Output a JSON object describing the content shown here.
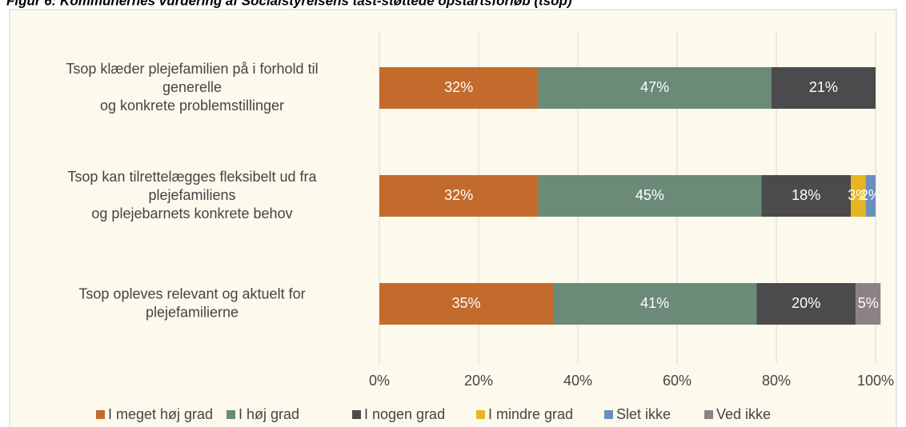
{
  "chart_data": {
    "type": "stacked_bar_horizontal",
    "title": "Figur 6: Kommunernes vurdering af Socialstyrelsens tast-støttede opstartsforløb (tsop)",
    "categories": [
      [
        "Tsop klæder plejefamilien på i forhold til",
        "generelle",
        "og konkrete problemstillinger"
      ],
      [
        "Tsop kan tilrettelægges fleksibelt ud fra",
        "plejefamiliens",
        "og plejebarnets konkrete behov"
      ],
      [
        "Tsop opleves relevant og aktuelt for",
        "plejefamilierne"
      ]
    ],
    "series": [
      {
        "name": "I meget høj grad",
        "color": "#c26b2d",
        "values": [
          32,
          32,
          35
        ],
        "value_labels": [
          "32%",
          "32%",
          "35%"
        ]
      },
      {
        "name": "I høj grad",
        "color": "#6b8a78",
        "values": [
          47,
          45,
          41
        ],
        "value_labels": [
          "47%",
          "45%",
          "41%"
        ]
      },
      {
        "name": "I nogen grad",
        "color": "#4b4b4d",
        "values": [
          21,
          18,
          20
        ],
        "value_labels": [
          "21%",
          "18%",
          "20%"
        ]
      },
      {
        "name": "I mindre grad",
        "color": "#e6b622",
        "values": [
          null,
          3,
          null
        ],
        "value_labels": [
          null,
          "3%",
          null
        ]
      },
      {
        "name": "Slet ikke",
        "color": "#6a8fbf",
        "values": [
          null,
          2,
          null
        ],
        "value_labels": [
          null,
          "2%",
          null
        ]
      },
      {
        "name": "Ved ikke",
        "color": "#8c8283",
        "values": [
          null,
          null,
          5
        ],
        "value_labels": [
          null,
          null,
          "5%"
        ]
      }
    ],
    "xlim": [
      0,
      100
    ],
    "xticks": [
      {
        "value": 0,
        "label": "0%"
      },
      {
        "value": 20,
        "label": "20%"
      },
      {
        "value": 40,
        "label": "40%"
      },
      {
        "value": 60,
        "label": "60%"
      },
      {
        "value": 80,
        "label": "80%"
      },
      {
        "value": 100,
        "label": "100%"
      }
    ],
    "grid": true,
    "legend": "bottom"
  }
}
